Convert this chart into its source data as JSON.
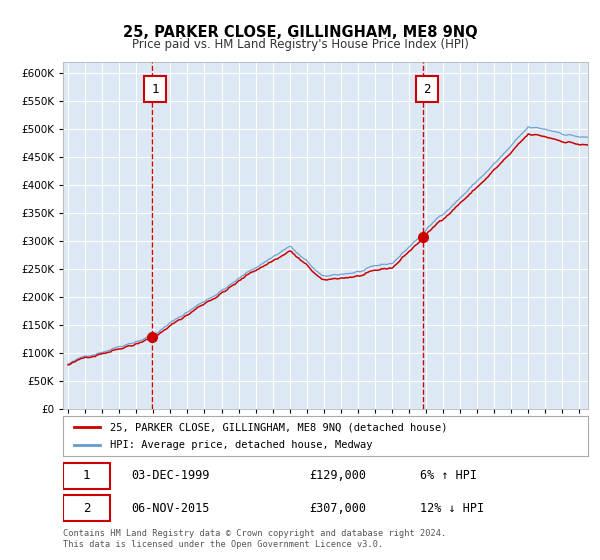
{
  "title": "25, PARKER CLOSE, GILLINGHAM, ME8 9NQ",
  "subtitle": "Price paid vs. HM Land Registry's House Price Index (HPI)",
  "legend_line1": "25, PARKER CLOSE, GILLINGHAM, ME8 9NQ (detached house)",
  "legend_line2": "HPI: Average price, detached house, Medway",
  "sale1_date": "03-DEC-1999",
  "sale1_price": "£129,000",
  "sale1_hpi": "6% ↑ HPI",
  "sale2_date": "06-NOV-2015",
  "sale2_price": "£307,000",
  "sale2_hpi": "12% ↓ HPI",
  "footnote": "Contains HM Land Registry data © Crown copyright and database right 2024.\nThis data is licensed under the Open Government Licence v3.0.",
  "plot_bg_color": "#dce9f5",
  "grid_color": "#ffffff",
  "red_line_color": "#cc0000",
  "blue_line_color": "#6699cc",
  "vline_color": "#cc0000",
  "sale1_year": 1999.92,
  "sale2_year": 2015.84,
  "sale1_price_val": 129000,
  "sale2_price_val": 307000,
  "ylim_max": 620000,
  "ylim_min": 0,
  "start_year": 1995,
  "end_year": 2025
}
